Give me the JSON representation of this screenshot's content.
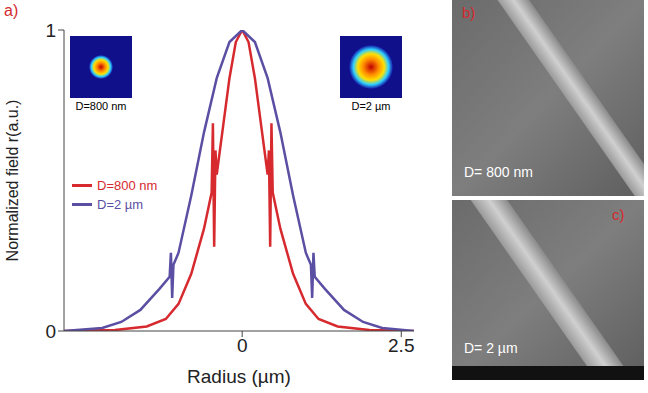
{
  "chart_data": {
    "type": "line",
    "panel_label": "a)",
    "x_label": "Radius (µm)",
    "y_label": "Normalized field r(a.u.)",
    "xlim": [
      -2.8,
      2.7
    ],
    "xticks": [
      0,
      2.5
    ],
    "ylim": [
      0,
      1
    ],
    "yticks": [
      0,
      1
    ],
    "legend": "left",
    "series": [
      {
        "name": "D=800 nm",
        "color": "#d62a2f",
        "x": [
          -2.8,
          -2.0,
          -1.5,
          -1.2,
          -1.0,
          -0.8,
          -0.6,
          -0.48,
          -0.46,
          -0.44,
          -0.42,
          -0.4,
          -0.3,
          -0.2,
          -0.1,
          0,
          0.1,
          0.2,
          0.3,
          0.4,
          0.42,
          0.44,
          0.46,
          0.48,
          0.6,
          0.8,
          1.0,
          1.2,
          1.5,
          2.0,
          2.7
        ],
        "values": [
          0,
          0.003,
          0.015,
          0.04,
          0.09,
          0.19,
          0.34,
          0.46,
          0.69,
          0.28,
          0.6,
          0.52,
          0.68,
          0.84,
          0.96,
          1,
          0.96,
          0.84,
          0.68,
          0.52,
          0.6,
          0.28,
          0.69,
          0.46,
          0.34,
          0.19,
          0.09,
          0.04,
          0.015,
          0.003,
          0
        ]
      },
      {
        "name": "D=2 µm",
        "color": "#5b4fa3",
        "x": [
          -2.8,
          -2.2,
          -1.9,
          -1.6,
          -1.3,
          -1.14,
          -1.12,
          -1.1,
          -1.08,
          -1.0,
          -0.8,
          -0.6,
          -0.4,
          -0.2,
          0,
          0.2,
          0.4,
          0.6,
          0.8,
          1.0,
          1.08,
          1.1,
          1.12,
          1.14,
          1.3,
          1.6,
          1.9,
          2.2,
          2.7
        ],
        "values": [
          0,
          0.01,
          0.03,
          0.07,
          0.14,
          0.18,
          0.26,
          0.11,
          0.22,
          0.26,
          0.45,
          0.66,
          0.84,
          0.96,
          1,
          0.96,
          0.84,
          0.66,
          0.45,
          0.26,
          0.22,
          0.11,
          0.26,
          0.18,
          0.14,
          0.07,
          0.03,
          0.01,
          0
        ]
      }
    ],
    "insets": [
      {
        "label": "D=800 nm"
      },
      {
        "label": "D=2 µm"
      }
    ]
  },
  "images": [
    {
      "panel_label": "b)",
      "label": "D= 800 nm"
    },
    {
      "panel_label": "c)",
      "label": "D= 2 µm"
    }
  ]
}
